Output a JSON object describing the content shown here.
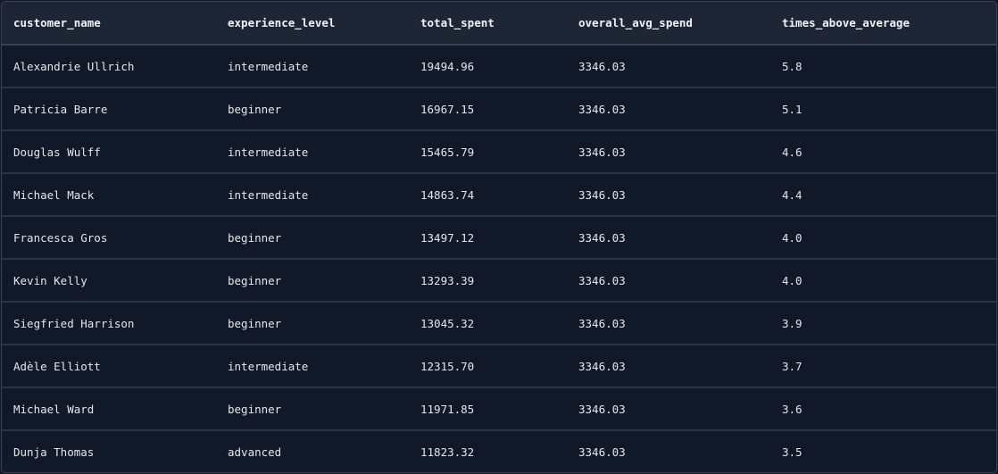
{
  "table": {
    "columns": [
      "customer_name",
      "experience_level",
      "total_spent",
      "overall_avg_spend",
      "times_above_average"
    ],
    "rows": [
      [
        "Alexandrie Ullrich",
        "intermediate",
        "19494.96",
        "3346.03",
        "5.8"
      ],
      [
        "Patricia Barre",
        "beginner",
        "16967.15",
        "3346.03",
        "5.1"
      ],
      [
        "Douglas Wulff",
        "intermediate",
        "15465.79",
        "3346.03",
        "4.6"
      ],
      [
        "Michael Mack",
        "intermediate",
        "14863.74",
        "3346.03",
        "4.4"
      ],
      [
        "Francesca Gros",
        "beginner",
        "13497.12",
        "3346.03",
        "4.0"
      ],
      [
        "Kevin Kelly",
        "beginner",
        "13293.39",
        "3346.03",
        "4.0"
      ],
      [
        "Siegfried Harrison",
        "beginner",
        "13045.32",
        "3346.03",
        "3.9"
      ],
      [
        "Adèle Elliott",
        "intermediate",
        "12315.70",
        "3346.03",
        "3.7"
      ],
      [
        "Michael Ward",
        "beginner",
        "11971.85",
        "3346.03",
        "3.6"
      ],
      [
        "Dunja Thomas",
        "advanced",
        "11823.32",
        "3346.03",
        "3.5"
      ]
    ]
  }
}
